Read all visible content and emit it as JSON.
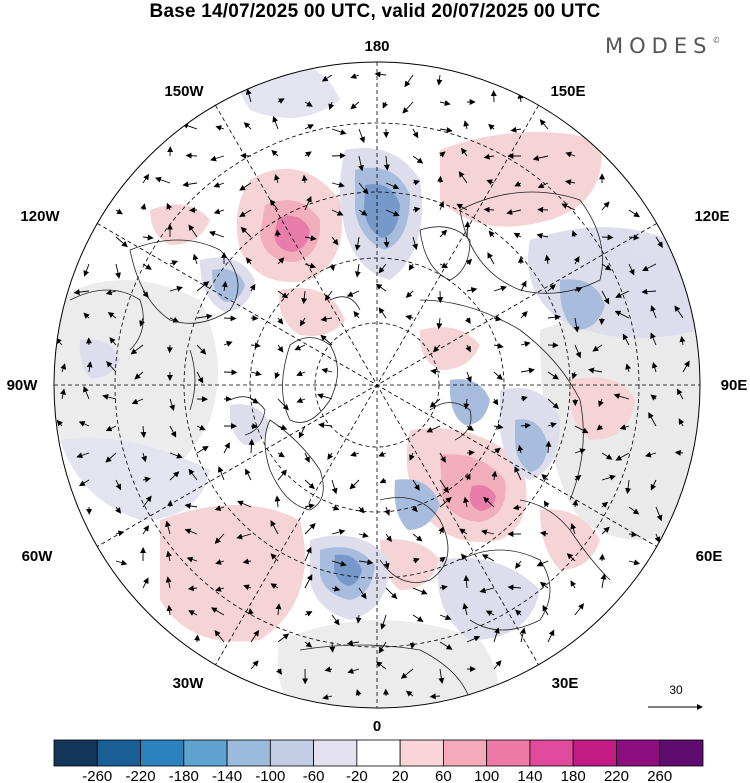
{
  "header": {
    "title": "Base 14/07/2025 00 UTC, valid 20/07/2025 00 UTC",
    "logo_text": "MODES",
    "logo_mark": "©"
  },
  "map": {
    "projection": "polar-stereographic-north",
    "meridian_labels": {
      "top": "180",
      "top_left": "150W",
      "top_right": "150E",
      "upper_left": "120W",
      "upper_right": "120E",
      "left": "90W",
      "right": "90E",
      "lower_left": "60W",
      "lower_right": "60E",
      "bottom_left": "30W",
      "bottom_right": "30E",
      "bottom": "0"
    },
    "reference_vector_label": "30",
    "colors": {
      "negative_strong": "#6f94c8",
      "negative_medium": "#a4b9dc",
      "negative_weak": "#dcdcec",
      "positive_weak": "#f6d2d4",
      "positive_medium": "#f2aab8",
      "positive_strong": "#e877a5",
      "background_gray": "#ececec"
    }
  },
  "colorbar": {
    "tick_labels": [
      "-260",
      "-220",
      "-180",
      "-140",
      "-100",
      "-60",
      "-20",
      "20",
      "60",
      "100",
      "140",
      "180",
      "220",
      "260"
    ],
    "colors": [
      "#12375a",
      "#195f96",
      "#2b82bf",
      "#5fa3d1",
      "#9bbbdc",
      "#c3cde5",
      "#e3e1f0",
      "#ffffff",
      "#f9d5d8",
      "#f4aab9",
      "#ef7aa6",
      "#e14a9d",
      "#c21b86",
      "#8e0e7f",
      "#5e0c6f"
    ]
  }
}
